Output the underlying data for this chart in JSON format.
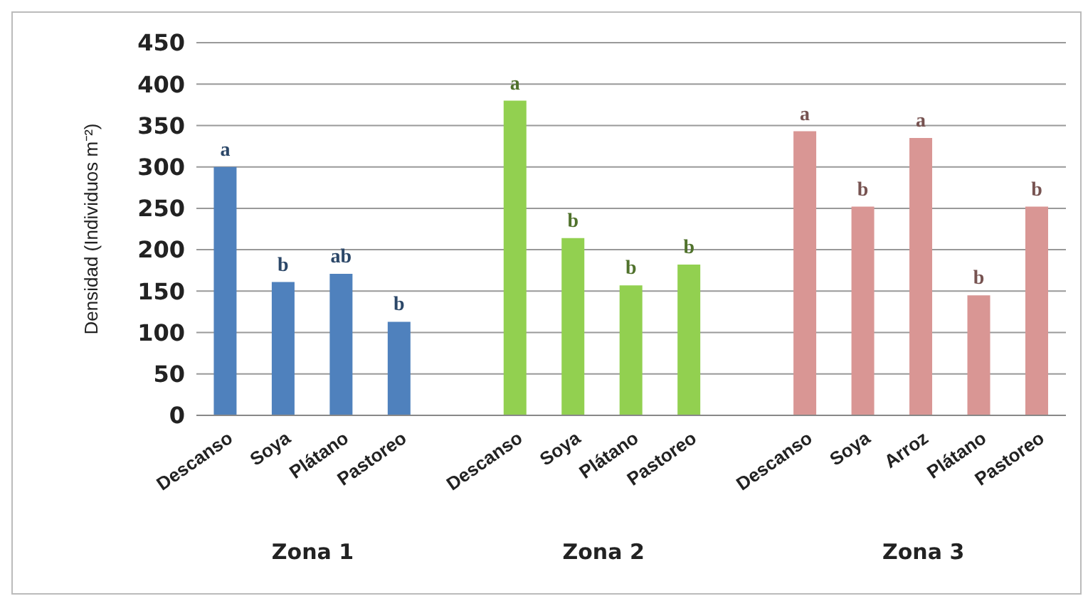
{
  "chart_data": {
    "type": "bar",
    "ylabel": "Densidad (Individuos m⁻²)",
    "categories": [
      "Descanso",
      "Soya",
      "Plátano",
      "Pastoreo",
      null,
      "Descanso",
      "Soya",
      "Plátano",
      "Pastoreo",
      null,
      "Descanso",
      "Soya",
      "Arroz",
      "Plátano",
      "Pastoreo"
    ],
    "values": [
      300,
      161,
      171,
      113,
      null,
      380,
      214,
      157,
      182,
      null,
      343,
      252,
      335,
      145,
      252
    ],
    "colors": [
      "#4f81bd",
      "#4f81bd",
      "#4f81bd",
      "#4f81bd",
      "#4f81bd",
      "#92d050",
      "#92d050",
      "#92d050",
      "#92d050",
      "#92d050",
      "#d99694",
      "#d99694",
      "#d99694",
      "#d99694",
      "#d99694"
    ],
    "value_labels": [
      "a",
      "b",
      "ab",
      "b",
      null,
      "a",
      "b",
      "b",
      "b",
      null,
      "a",
      "b",
      "a",
      "b",
      "b"
    ],
    "annotations": [
      "Zona 1",
      "Zona 2",
      "Zona 3"
    ],
    "ylim": [
      0,
      450
    ],
    "yticks": [
      0,
      50,
      100,
      150,
      200,
      250,
      300,
      350,
      400,
      450
    ],
    "grid": "y"
  }
}
